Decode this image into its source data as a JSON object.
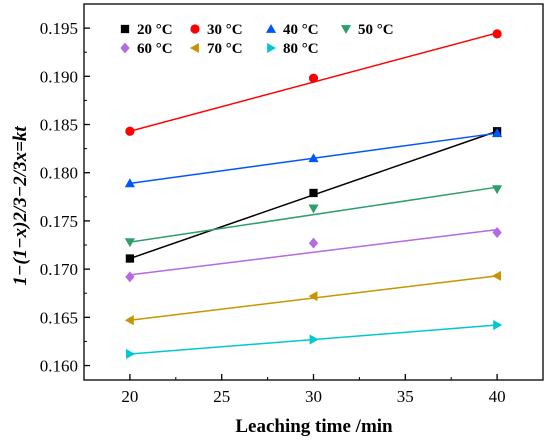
{
  "chart_data": {
    "type": "scatter",
    "xlabel": "Leaching time /min",
    "ylabel": "1−(1−x)2/3−2/3x=kt",
    "xlim": [
      17.5,
      42.5
    ],
    "ylim": [
      0.1585,
      0.1975
    ],
    "x_ticks": [
      20,
      25,
      30,
      35,
      40
    ],
    "x_tick_labels": [
      "20",
      "25",
      "30",
      "35",
      "40"
    ],
    "y_ticks": [
      0.16,
      0.165,
      0.17,
      0.175,
      0.18,
      0.185,
      0.19,
      0.195
    ],
    "y_tick_labels": [
      "0.160",
      "0.165",
      "0.170",
      "0.175",
      "0.180",
      "0.185",
      "0.190",
      "0.195"
    ],
    "grid": false,
    "legend_position": "top",
    "x": [
      20,
      30,
      40
    ],
    "series": [
      {
        "name": "20 °C",
        "marker": "square",
        "color": "#000000",
        "values": [
          0.1711,
          0.1779,
          0.1843
        ],
        "fit": [
          0.1711,
          0.1777,
          0.1843
        ]
      },
      {
        "name": "30 °C",
        "marker": "circle",
        "color": "#ff0000",
        "values": [
          0.1843,
          0.1898,
          0.1944
        ],
        "fit": [
          0.1843,
          0.1894,
          0.1945
        ]
      },
      {
        "name": "40 °C",
        "marker": "triangle-up",
        "color": "#0055ff",
        "values": [
          0.1789,
          0.1815,
          0.1841
        ],
        "fit": [
          0.1789,
          0.1815,
          0.1841
        ]
      },
      {
        "name": "50 °C",
        "marker": "triangle-down",
        "color": "#2e9e6b",
        "values": [
          0.1728,
          0.1763,
          0.1783
        ],
        "fit": [
          0.1728,
          0.1756,
          0.1785
        ]
      },
      {
        "name": "60 °C",
        "marker": "diamond",
        "color": "#b36ae2",
        "values": [
          0.1692,
          0.1727,
          0.1738
        ],
        "fit": [
          0.1694,
          0.1718,
          0.1741
        ]
      },
      {
        "name": "70 °C",
        "marker": "triangle-left",
        "color": "#c99400",
        "values": [
          0.1647,
          0.1672,
          0.1693
        ],
        "fit": [
          0.1647,
          0.167,
          0.1693
        ]
      },
      {
        "name": "80 °C",
        "marker": "triangle-right",
        "color": "#00c8d2",
        "values": [
          0.1612,
          0.1627,
          0.1642
        ],
        "fit": [
          0.1612,
          0.1627,
          0.1642
        ]
      }
    ]
  }
}
